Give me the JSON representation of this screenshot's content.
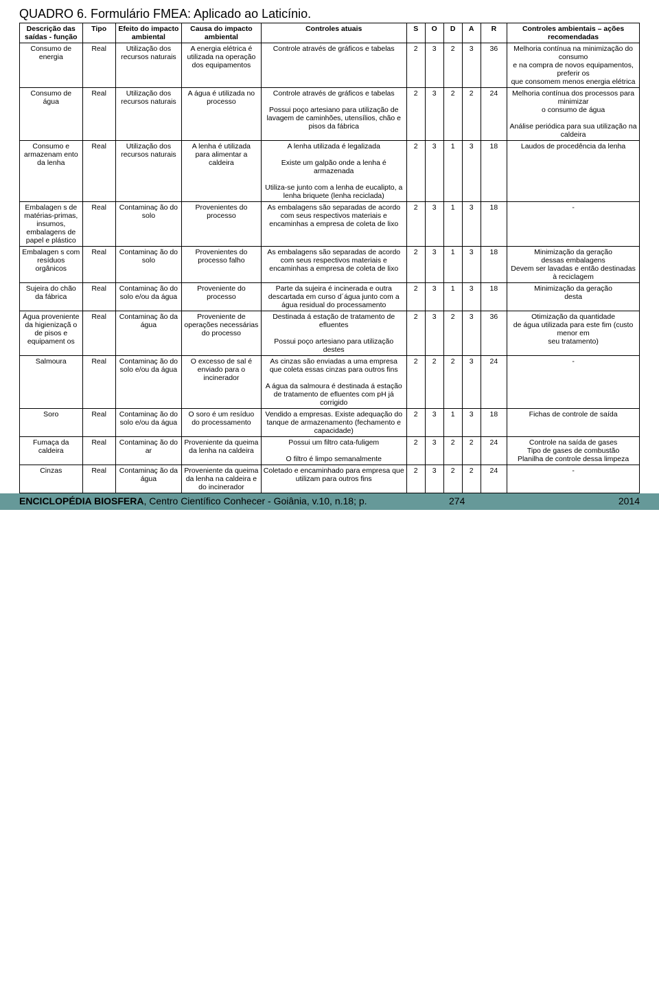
{
  "title": "QUADRO 6. Formulário FMEA: Aplicado ao Laticínio.",
  "headers": {
    "descricao": "Descrição das saídas - função",
    "tipo": "Tipo",
    "efeito": "Efeito do impacto ambiental",
    "causa": "Causa do impacto ambiental",
    "controles": "Controles atuais",
    "s": "S",
    "o": "O",
    "d": "D",
    "a": "A",
    "r": "R",
    "recom": "Controles ambientais – ações recomendadas"
  },
  "rows": [
    {
      "descricao": "Consumo de energia",
      "tipo": "Real",
      "efeito": "Utilização dos recursos naturais",
      "causa": "A energia elétrica é utilizada na operação dos equipamentos",
      "controles": "Controle através de gráficos e tabelas",
      "s": "2",
      "o": "3",
      "d": "2",
      "a": "3",
      "r": "36",
      "recom": "Melhoria contínua na minimização do consumo\ne na compra de novos equipamentos, preferir os\nque consomem menos energia elétrica"
    },
    {
      "descricao": "Consumo de água",
      "tipo": "Real",
      "efeito": "Utilização dos recursos naturais",
      "causa": "A água é utilizada no processo",
      "controles": "Controle através de gráficos e tabelas\n\nPossui poço artesiano para utilização de lavagem de caminhões, utensílios, chão e pisos da fábrica",
      "s": "2",
      "o": "3",
      "d": "2",
      "a": "2",
      "r": "24",
      "recom": "Melhoria contínua dos processos para minimizar\no consumo de água\n\nAnálise periódica  para sua utilização na caldeira"
    },
    {
      "descricao": "Consumo e armazenam ento da lenha",
      "tipo": "Real",
      "efeito": "Utilização dos recursos naturais",
      "causa": "A lenha é utilizada para alimentar a caldeira",
      "controles": "A lenha utilizada é legalizada\n\nExiste um galpão onde a lenha é armazenada\n\nUtiliza-se junto com a lenha de eucalipto, a lenha briquete (lenha reciclada)",
      "s": "2",
      "o": "3",
      "d": "1",
      "a": "3",
      "r": "18",
      "recom": "Laudos de procedência da lenha"
    },
    {
      "descricao": "Embalagen s de matérias-primas, insumos, embalagens de papel e plástico",
      "tipo": "Real",
      "efeito": "Contaminaç ão do solo",
      "causa": "Provenientes do processo",
      "controles": "As embalagens são separadas de acordo com seus respectivos materiais e encaminhas a empresa de coleta de lixo",
      "s": "2",
      "o": "3",
      "d": "1",
      "a": "3",
      "r": "18",
      "recom": "-"
    },
    {
      "descricao": "Embalagen s com resíduos orgânicos",
      "tipo": "Real",
      "efeito": "Contaminaç ão do solo",
      "causa": "Provenientes do processo falho",
      "controles": "As embalagens são separadas de acordo com seus respectivos materiais e encaminhas a empresa de coleta de lixo",
      "s": "2",
      "o": "3",
      "d": "1",
      "a": "3",
      "r": "18",
      "recom": "Minimização da geração\ndessas embalagens\nDevem ser lavadas e então destinadas à reciclagem"
    },
    {
      "descricao": "Sujeira do chão da fábrica",
      "tipo": "Real",
      "efeito": "Contaminaç ão do solo e/ou da água",
      "causa": "Proveniente do processo",
      "controles": "Parte da sujeira é incinerada e outra descartada em curso d´água junto com a água residual do processamento",
      "s": "2",
      "o": "3",
      "d": "1",
      "a": "3",
      "r": "18",
      "recom": "Minimização da geração\ndesta"
    },
    {
      "descricao": "Água proveniente da higienizaçã o de pisos e equipament os",
      "tipo": "Real",
      "efeito": "Contaminaç ão da água",
      "causa": "Proveniente de operações necessárias do processo",
      "controles": "Destinada á estação de tratamento de efluentes\n\nPossui poço artesiano para utilização destes",
      "s": "2",
      "o": "3",
      "d": "2",
      "a": "3",
      "r": "36",
      "recom": "Otimização da quantidade\nde água utilizada para este fim (custo menor em\nseu tratamento)"
    },
    {
      "descricao": "Salmoura",
      "tipo": "Real",
      "efeito": "Contaminaç ão do solo e/ou da água",
      "causa": "O excesso de sal é enviado para o incinerador",
      "controles": "As cinzas são enviadas a uma empresa que coleta essas cinzas para outros fins\n\nA água da salmoura é destinada á estação de tratamento de efluentes com pH  já corrigido",
      "s": "2",
      "o": "2",
      "d": "2",
      "a": "3",
      "r": "24",
      "recom": "-"
    },
    {
      "descricao": "Soro",
      "tipo": "Real",
      "efeito": "Contaminaç ão do solo e/ou da água",
      "causa": "O soro é um resíduo do processamento",
      "controles": "Vendido a empresas. Existe adequação do tanque de armazenamento (fechamento e capacidade)",
      "s": "2",
      "o": "3",
      "d": "1",
      "a": "3",
      "r": "18",
      "recom": "Fichas de controle de saída"
    },
    {
      "descricao": "Fumaça da caldeira",
      "tipo": "Real",
      "efeito": "Contaminaç ão do ar",
      "causa": "Proveniente da queima da lenha na caldeira",
      "controles": "Possui um filtro cata-fuligem\n\nO filtro é limpo semanalmente",
      "s": "2",
      "o": "3",
      "d": "2",
      "a": "2",
      "r": "24",
      "recom": "Controle na saída de gases\nTipo de gases de combustão\nPlanilha de controle dessa limpeza"
    },
    {
      "descricao": "Cinzas",
      "tipo": "Real",
      "efeito": "Contaminaç ão da água",
      "causa": "Proveniente da queima da lenha na caldeira e do incinerador",
      "controles": "Coletado e encaminhado para empresa que utilizam para outros fins",
      "s": "2",
      "o": "3",
      "d": "2",
      "a": "2",
      "r": "24",
      "recom": "-"
    }
  ],
  "footer": {
    "text_prefix": "ENCICLOPÉDIA BIOSFERA",
    "text_rest": ", Centro Científico Conhecer - Goiânia, v.10, n.18; p.",
    "page": "274",
    "year": "2014"
  },
  "colors": {
    "footer_bg": "#669999",
    "text": "#000000",
    "background": "#ffffff"
  },
  "font_sizes": {
    "title": 18,
    "table": 10.5,
    "footer": 14
  }
}
